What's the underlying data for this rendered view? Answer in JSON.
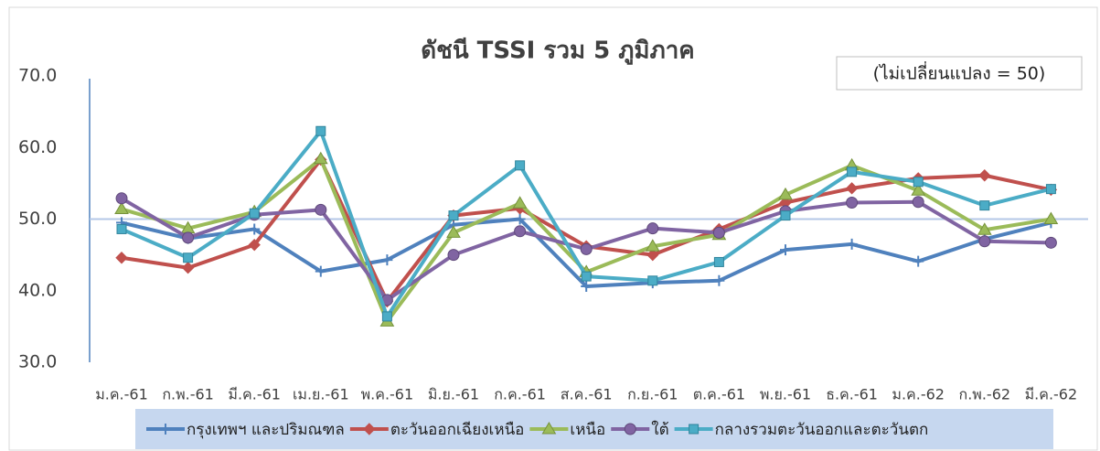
{
  "chart_data": {
    "type": "line",
    "title": "ดัชนี TSSI รวม 5 ภูมิภาค",
    "annotation": "(ไม่เปลี่ยนแปลง = 50)",
    "reference_line": 50,
    "categories": [
      "ม.ค.-61",
      "ก.พ.-61",
      "มี.ค.-61",
      "เม.ย.-61",
      "พ.ค.-61",
      "มิ.ย.-61",
      "ก.ค.-61",
      "ส.ค.-61",
      "ก.ย.-61",
      "ต.ค.-61",
      "พ.ย.-61",
      "ธ.ค.-61",
      "ม.ค.-62",
      "ก.พ.-62",
      "มี.ค.-62"
    ],
    "series": [
      {
        "name": "กรุงเทพฯ และปริมณฑล",
        "color": "#4f81bd",
        "marker": "plus",
        "values": [
          49.5,
          47.3,
          48.6,
          42.7,
          44.3,
          49.2,
          50.0,
          40.6,
          41.1,
          41.4,
          45.7,
          46.5,
          44.1,
          47.2,
          49.5
        ]
      },
      {
        "name": "ตะวันออกเฉียงเหนือ",
        "color": "#c0504d",
        "marker": "diamond",
        "values": [
          44.6,
          43.2,
          46.4,
          58.3,
          38.5,
          50.5,
          51.5,
          46.2,
          45.0,
          48.6,
          52.3,
          54.3,
          55.7,
          56.1,
          54.1
        ]
      },
      {
        "name": "เหนือ",
        "color": "#9bbb59",
        "marker": "triangle",
        "values": [
          51.4,
          48.7,
          51.0,
          58.4,
          35.7,
          48.1,
          52.2,
          42.6,
          46.2,
          47.8,
          53.4,
          57.5,
          54.0,
          48.5,
          50.0
        ]
      },
      {
        "name": "ใต้",
        "color": "#8064a2",
        "marker": "circle",
        "values": [
          52.9,
          47.4,
          50.6,
          51.3,
          38.7,
          45.0,
          48.3,
          45.8,
          48.7,
          48.1,
          51.1,
          52.3,
          52.4,
          46.9,
          46.7
        ]
      },
      {
        "name": "กลางรวมตะวันออกและตะวันตก",
        "color": "#4bacc6",
        "marker": "square",
        "values": [
          48.6,
          44.6,
          50.8,
          62.3,
          36.4,
          50.5,
          57.5,
          42.0,
          41.4,
          44.0,
          50.5,
          56.6,
          55.2,
          51.9,
          54.2
        ]
      }
    ],
    "ylim": [
      30,
      70
    ],
    "yticks": [
      {
        "value": 30,
        "label": "30.0"
      },
      {
        "value": 40,
        "label": "40.0"
      },
      {
        "value": 50,
        "label": "50.0"
      },
      {
        "value": 60,
        "label": "60.0"
      },
      {
        "value": 70,
        "label": "70.0"
      }
    ],
    "legend": "bottom"
  }
}
